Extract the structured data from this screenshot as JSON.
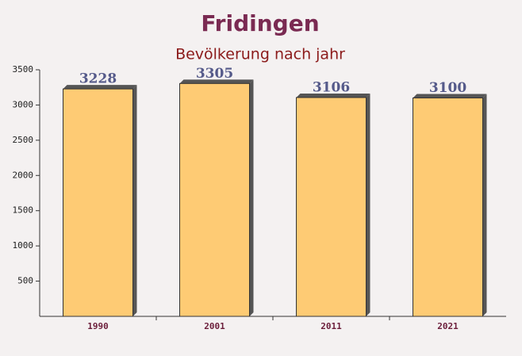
{
  "chart_data": {
    "type": "bar",
    "title": "Fridingen",
    "subtitle": "Bevölkerung nach jahr",
    "categories": [
      "1990",
      "2001",
      "2011",
      "2021"
    ],
    "values": [
      3228,
      3305,
      3106,
      3100
    ],
    "color": "#ffc766",
    "ylim": [
      0,
      3500
    ],
    "yticks": [
      500,
      1000,
      1500,
      2000,
      2500,
      3000,
      3500
    ]
  }
}
